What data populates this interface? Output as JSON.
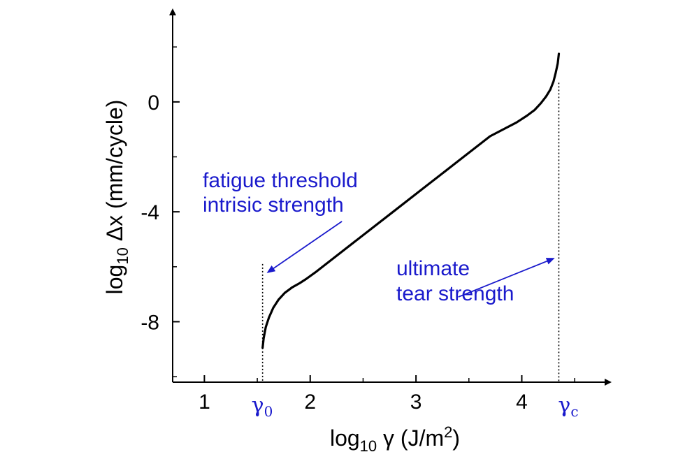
{
  "chart_data": {
    "type": "line",
    "xlabel": {
      "prefix": "log",
      "sub": "10",
      "rest": " γ  (J/m",
      "sup": "2",
      "close": ")"
    },
    "ylabel": {
      "prefix": "log",
      "sub": "10",
      "rest": " Δx  (mm/cycle)"
    },
    "xlim": [
      0.7,
      4.75
    ],
    "ylim": [
      -10.2,
      3.2
    ],
    "x_ticks": [
      1,
      2,
      3,
      4
    ],
    "y_ticks": [
      0,
      -4,
      -8
    ],
    "x_tick_labels": [
      "1",
      "2",
      "3",
      "4"
    ],
    "y_tick_labels": [
      "0",
      "-4",
      "-8"
    ],
    "gamma_markers": [
      {
        "base": "γ",
        "sub": "0",
        "x": 1.55
      },
      {
        "base": "γ",
        "sub": "c",
        "x": 4.35
      }
    ],
    "threshold_lines": [
      {
        "x": 1.55,
        "y_top": -5.9
      },
      {
        "x": 4.35,
        "y_top": 0.7
      }
    ],
    "series": [
      {
        "x": [
          1.55,
          1.56,
          1.58,
          1.61,
          1.65,
          1.7,
          1.76,
          1.83,
          1.9,
          1.96,
          2.05,
          2.2,
          2.5,
          2.8,
          3.1,
          3.4,
          3.7,
          3.95,
          4.05,
          4.12,
          4.18,
          4.23,
          4.27,
          4.3,
          4.32,
          4.34,
          4.35
        ],
        "y": [
          -8.95,
          -8.6,
          -8.2,
          -7.85,
          -7.5,
          -7.2,
          -6.95,
          -6.75,
          -6.6,
          -6.45,
          -6.2,
          -5.75,
          -4.85,
          -3.95,
          -3.05,
          -2.15,
          -1.25,
          -0.75,
          -0.5,
          -0.3,
          -0.05,
          0.2,
          0.45,
          0.75,
          1.05,
          1.4,
          1.75
        ]
      }
    ],
    "annotations": [
      {
        "lines": [
          "fatigue threshold",
          "intrisic strength"
        ],
        "arrow_from": [
          2.3,
          -4.35
        ],
        "arrow_to": [
          1.6,
          -6.2
        ]
      },
      {
        "lines": [
          "ultimate",
          "tear strength"
        ],
        "arrow_from": [
          3.4,
          -7.1
        ],
        "arrow_to": [
          4.3,
          -5.7
        ]
      }
    ]
  }
}
